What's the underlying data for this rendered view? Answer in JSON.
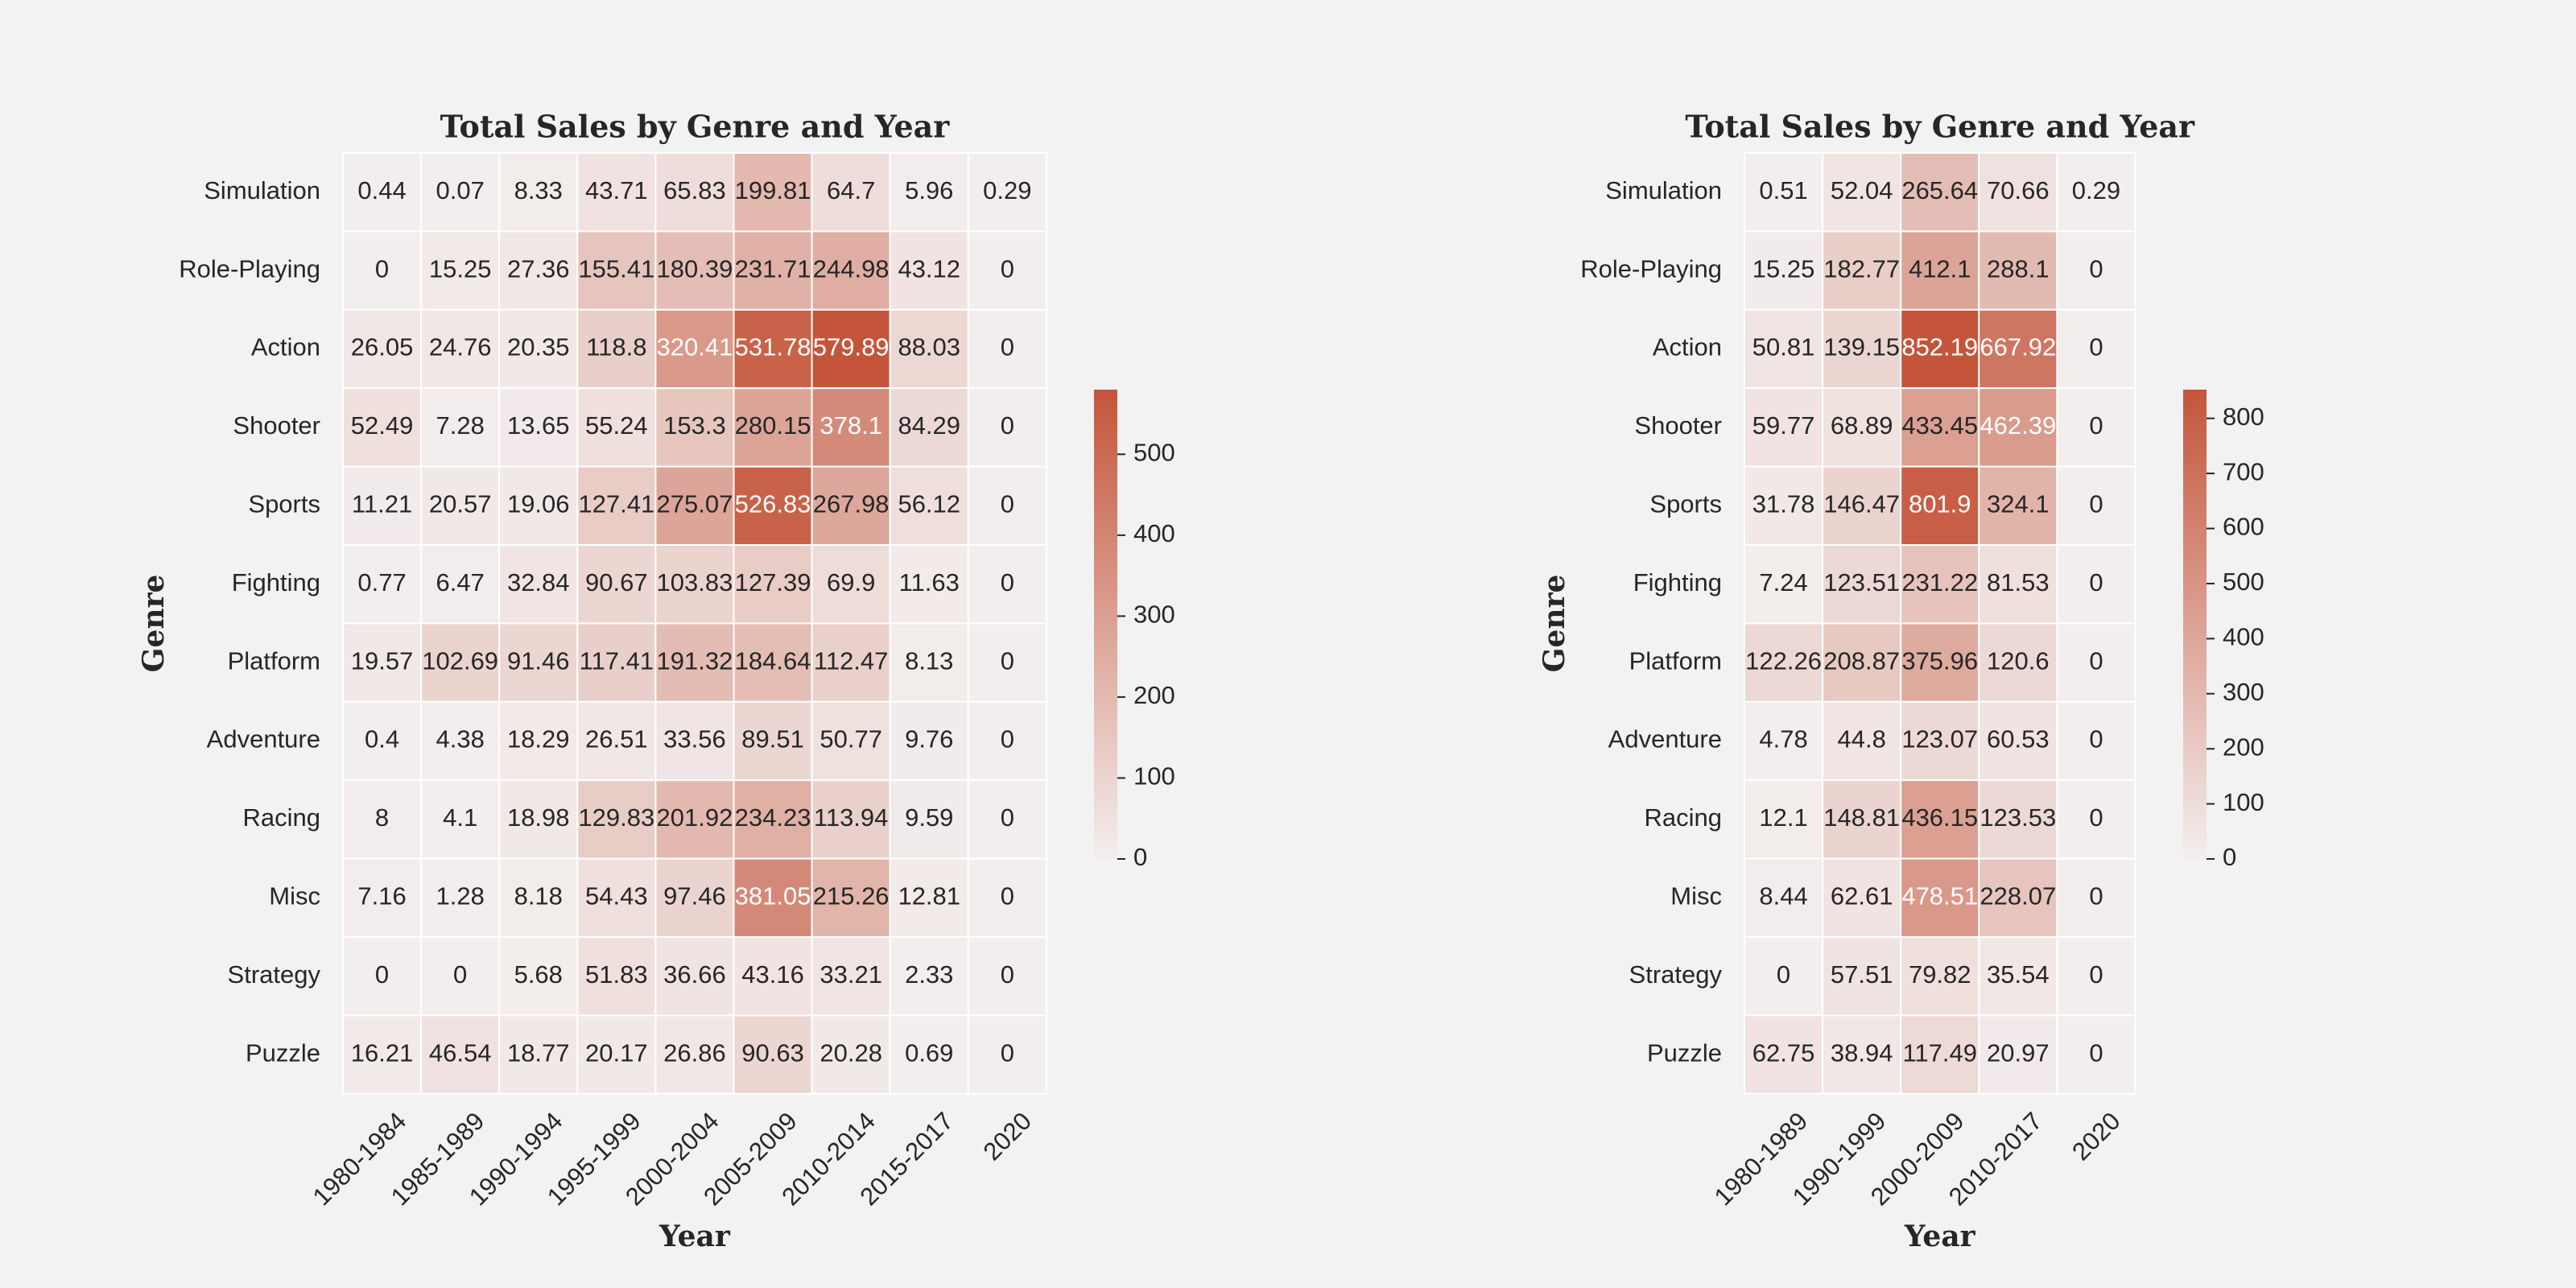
{
  "chart_data": [
    {
      "type": "heatmap",
      "title": "Total Sales by Genre and Year",
      "xlabel": "Year",
      "ylabel": "Genre",
      "x": [
        "1980-1984",
        "1985-1989",
        "1990-1994",
        "1995-1999",
        "2000-2004",
        "2005-2009",
        "2010-2014",
        "2015-2017",
        "2020"
      ],
      "y": [
        "Simulation",
        "Role-Playing",
        "Action",
        "Shooter",
        "Sports",
        "Fighting",
        "Platform",
        "Adventure",
        "Racing",
        "Misc",
        "Strategy",
        "Puzzle"
      ],
      "values": [
        [
          0.44,
          0.07,
          8.33,
          43.71,
          65.83,
          199.81,
          64.7,
          5.96,
          0.29
        ],
        [
          0,
          15.25,
          27.36,
          155.41,
          180.39,
          231.71,
          244.98,
          43.12,
          0
        ],
        [
          26.05,
          24.76,
          20.35,
          118.8,
          320.41,
          531.78,
          579.89,
          88.03,
          0
        ],
        [
          52.49,
          7.28,
          13.65,
          55.24,
          153.3,
          280.15,
          378.1,
          84.29,
          0
        ],
        [
          11.21,
          20.57,
          19.06,
          127.41,
          275.07,
          526.83,
          267.98,
          56.12,
          0
        ],
        [
          0.77,
          6.47,
          32.84,
          90.67,
          103.83,
          127.39,
          69.9,
          11.63,
          0
        ],
        [
          19.57,
          102.69,
          91.46,
          117.41,
          191.32,
          184.64,
          112.47,
          8.13,
          0
        ],
        [
          0.4,
          4.38,
          18.29,
          26.51,
          33.56,
          89.51,
          50.77,
          9.76,
          0
        ],
        [
          8,
          4.1,
          18.98,
          129.83,
          201.92,
          234.23,
          113.94,
          9.59,
          0
        ],
        [
          7.16,
          1.28,
          8.18,
          54.43,
          97.46,
          381.05,
          215.26,
          12.81,
          0
        ],
        [
          0,
          0,
          5.68,
          51.83,
          36.66,
          43.16,
          33.21,
          2.33,
          0
        ],
        [
          16.21,
          46.54,
          18.77,
          20.17,
          26.86,
          90.63,
          20.28,
          0.69,
          0
        ]
      ],
      "zlim": [
        0,
        579.89
      ],
      "zticks": [
        0,
        100,
        200,
        300,
        400,
        500
      ],
      "colors": [
        "#f3eeee",
        "#c4553a"
      ]
    },
    {
      "type": "heatmap",
      "title": "Total Sales by Genre and Year",
      "xlabel": "Year",
      "ylabel": "Genre",
      "x": [
        "1980-1989",
        "1990-1999",
        "2000-2009",
        "2010-2017",
        "2020"
      ],
      "y": [
        "Simulation",
        "Role-Playing",
        "Action",
        "Shooter",
        "Sports",
        "Fighting",
        "Platform",
        "Adventure",
        "Racing",
        "Misc",
        "Strategy",
        "Puzzle"
      ],
      "values": [
        [
          0.51,
          52.04,
          265.64,
          70.66,
          0.29
        ],
        [
          15.25,
          182.77,
          412.1,
          288.1,
          0
        ],
        [
          50.81,
          139.15,
          852.19,
          667.92,
          0
        ],
        [
          59.77,
          68.89,
          433.45,
          462.39,
          0
        ],
        [
          31.78,
          146.47,
          801.9,
          324.1,
          0
        ],
        [
          7.24,
          123.51,
          231.22,
          81.53,
          0
        ],
        [
          122.26,
          208.87,
          375.96,
          120.6,
          0
        ],
        [
          4.78,
          44.8,
          123.07,
          60.53,
          0
        ],
        [
          12.1,
          148.81,
          436.15,
          123.53,
          0
        ],
        [
          8.44,
          62.61,
          478.51,
          228.07,
          0
        ],
        [
          0,
          57.51,
          79.82,
          35.54,
          0
        ],
        [
          62.75,
          38.94,
          117.49,
          20.97,
          0
        ]
      ],
      "zlim": [
        0,
        852.19
      ],
      "zticks": [
        0,
        100,
        200,
        300,
        400,
        500,
        600,
        700,
        800
      ],
      "colors": [
        "#f3eeee",
        "#c4553a"
      ]
    }
  ]
}
